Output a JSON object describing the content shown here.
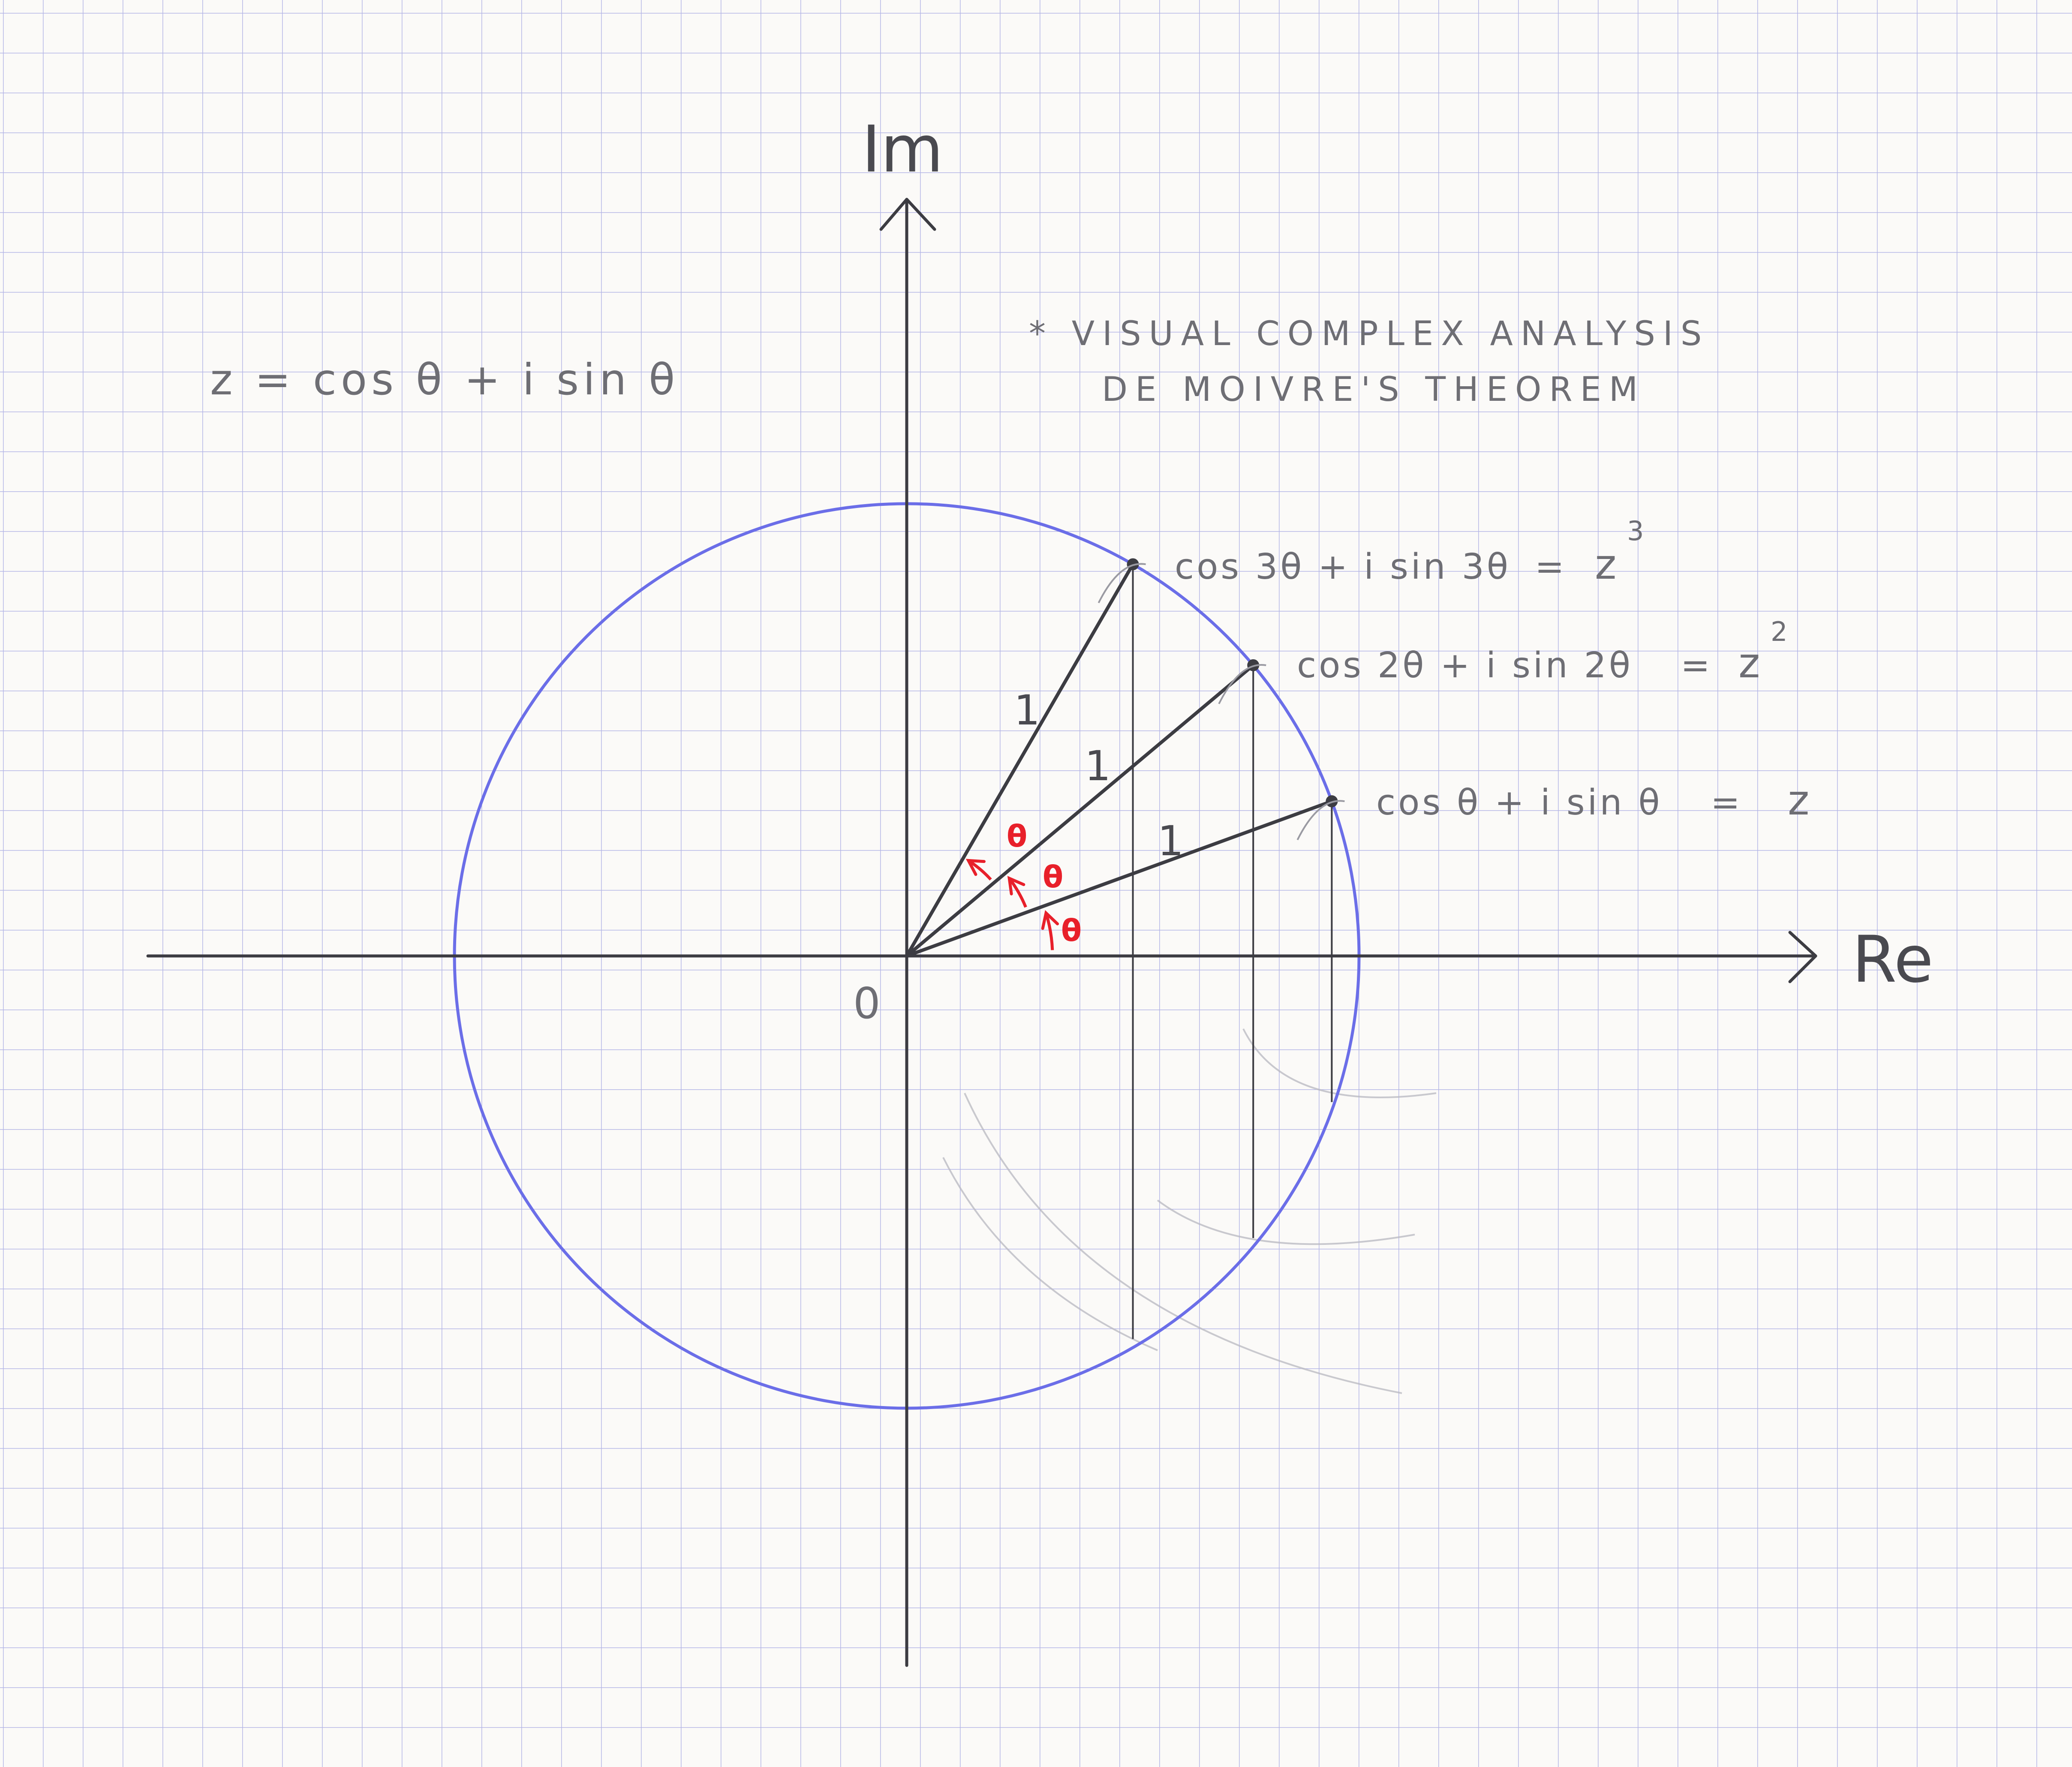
{
  "axes": {
    "real_label": "Re",
    "imag_label": "Im",
    "origin_label": "0"
  },
  "title": {
    "line1": "* VISUAL COMPLEX ANALYSIS",
    "line2": "DE MOIVRE'S THEOREM"
  },
  "definition": "z = cos θ + i sin θ",
  "unit_circle": {
    "radius": 1,
    "color": "#6b6ee8"
  },
  "theta_degrees": 20,
  "points": [
    {
      "power": 1,
      "label": "cos θ + i sin θ",
      "equals": "=",
      "result": "z"
    },
    {
      "power": 2,
      "label": "cos 2θ + i sin 2θ",
      "equals": "=",
      "result": "z",
      "exponent": "2"
    },
    {
      "power": 3,
      "label": "cos 3θ + i sin 3θ",
      "equals": "=",
      "result": "z",
      "exponent": "3"
    }
  ],
  "segment_labels": [
    "1",
    "1",
    "1"
  ],
  "angle_label": "θ",
  "colors": {
    "axis": "#3c3c42",
    "angle": "#e8202a",
    "grid": "#b4b6e6"
  }
}
